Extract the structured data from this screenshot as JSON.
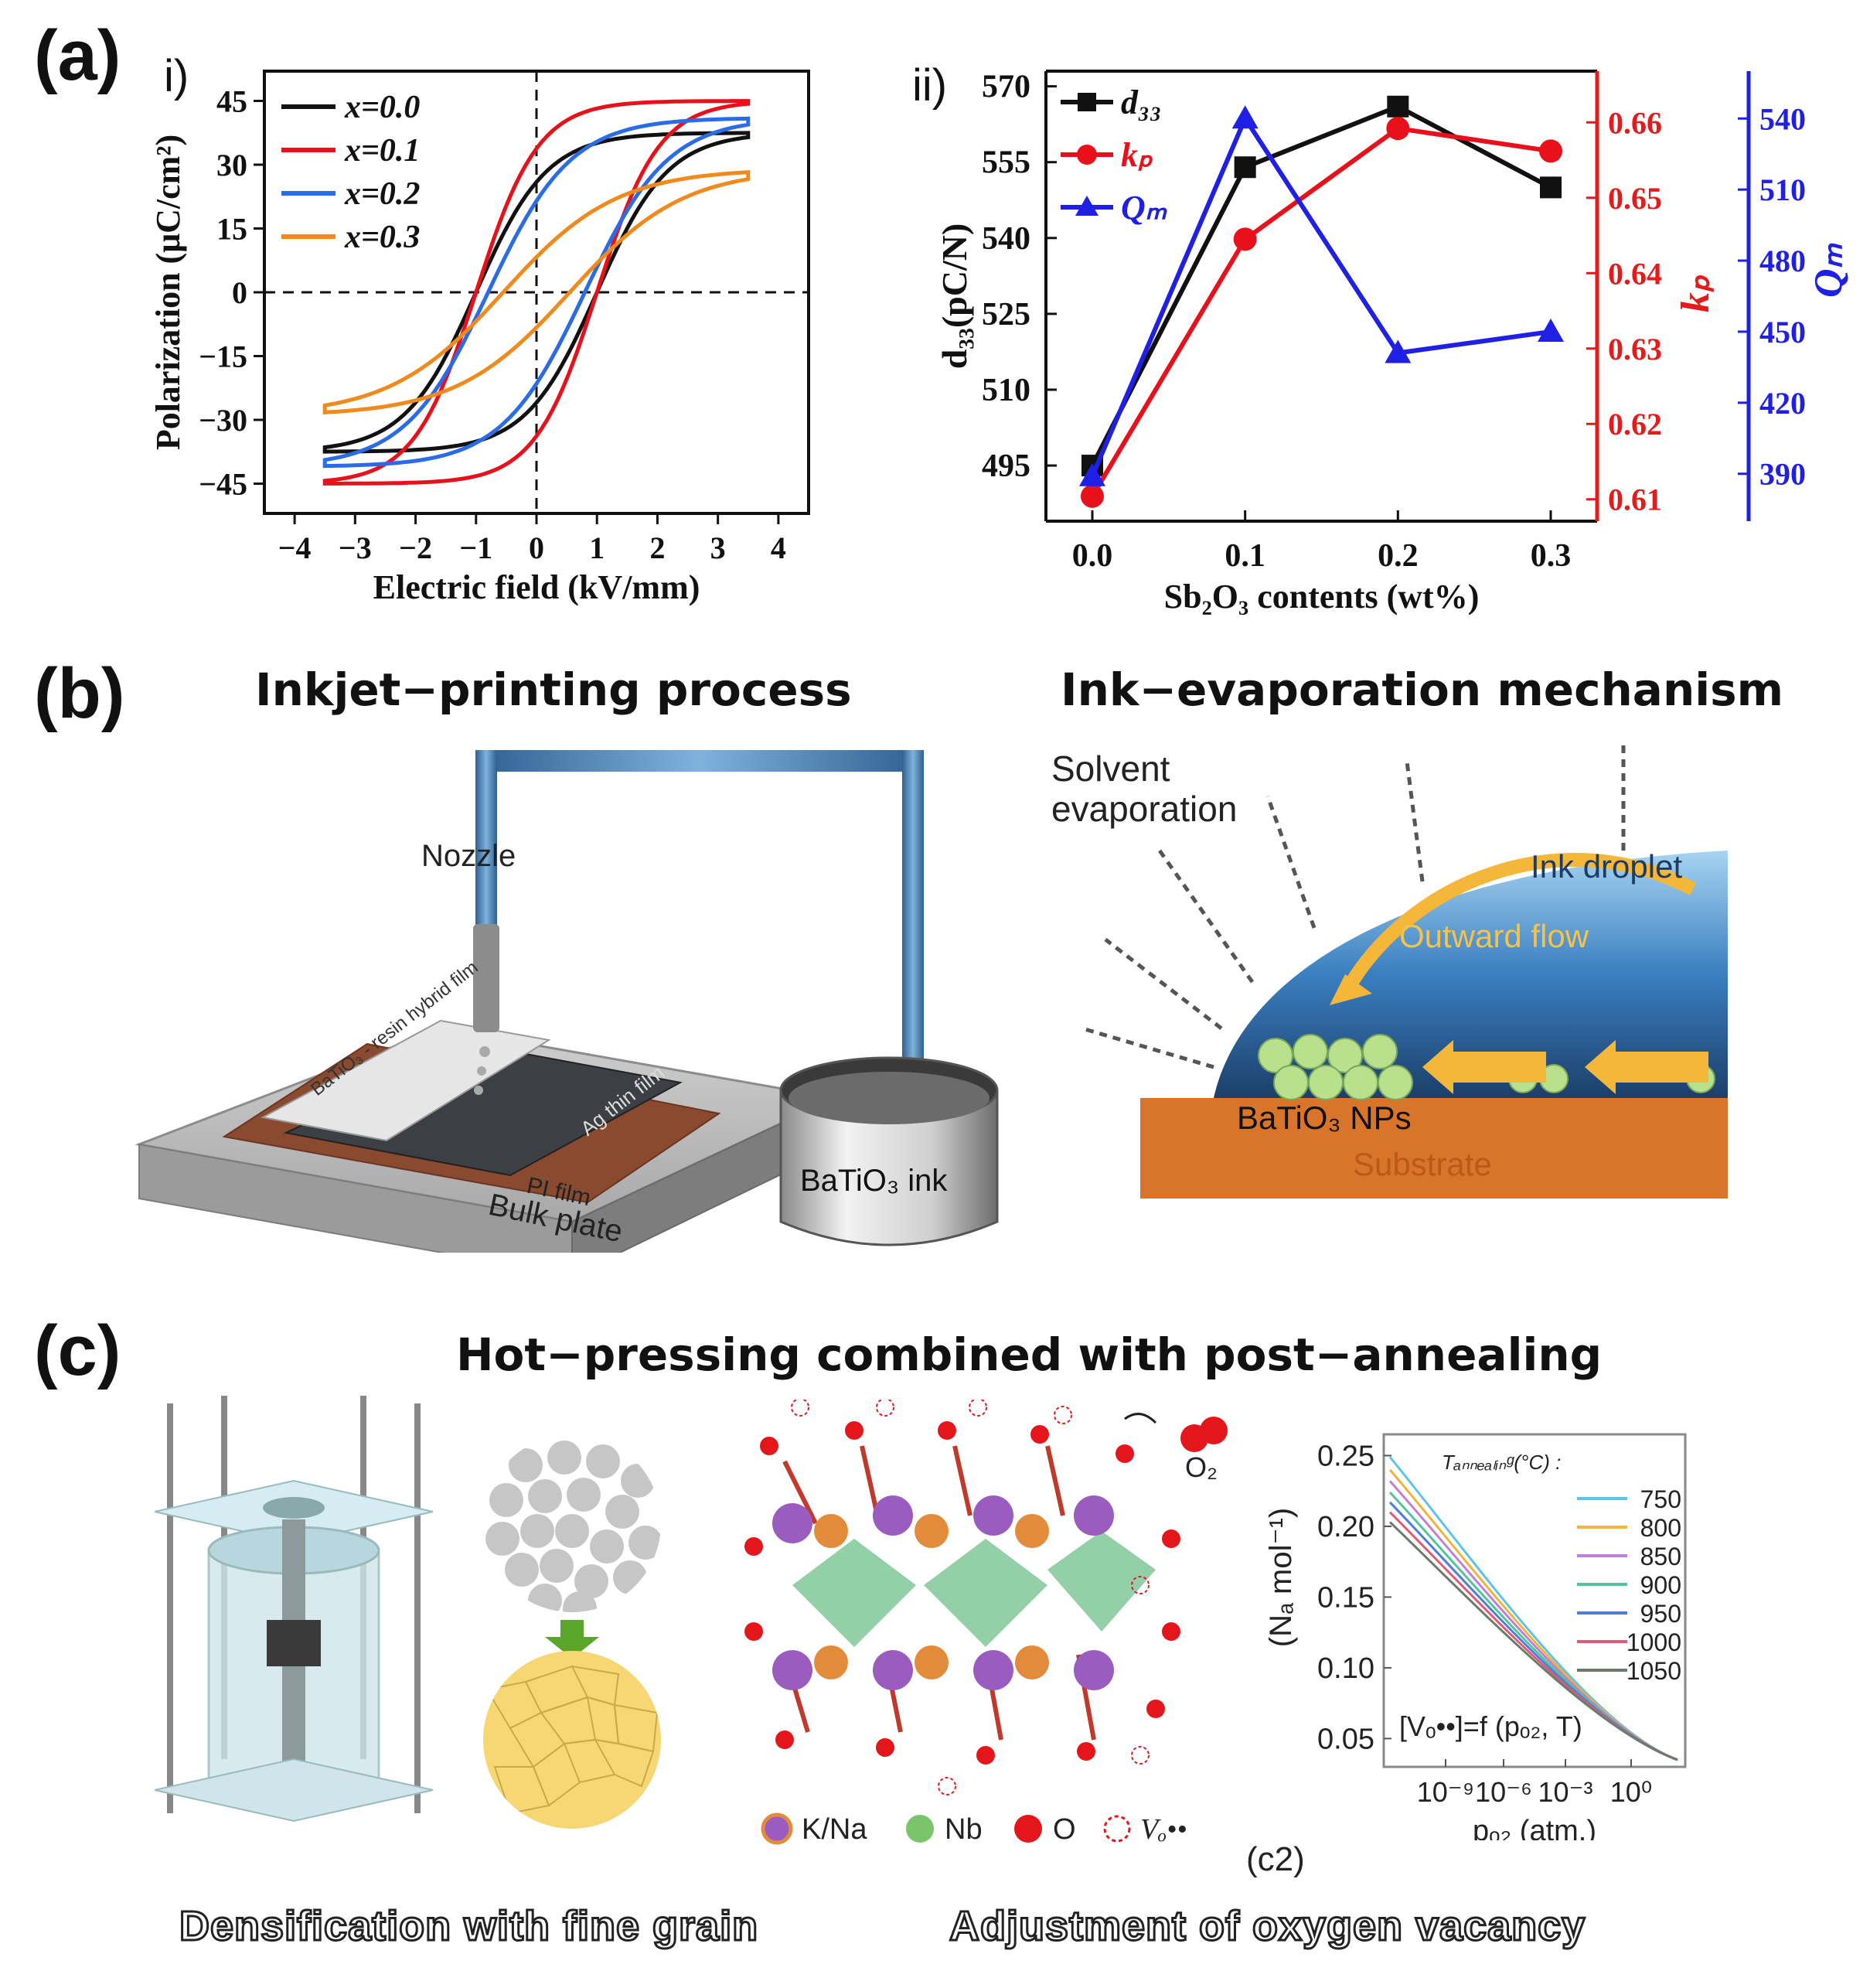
{
  "figure": {
    "panel_a": {
      "letter": "(a)",
      "sub_i": "i)",
      "sub_ii": "ii)"
    },
    "panel_b": {
      "letter": "(b)",
      "left_title": "Inkjet−printing process",
      "right_title": "Ink−evaporation mechanism",
      "labels": {
        "nozzle": "Nozzle",
        "hybrid_film": "BaTiO₃ - resin hybrid film",
        "ag_film": "Ag thin film",
        "pi_film": "PI film",
        "bulk_plate": "Bulk plate",
        "ink": "BaTiO₃ ink",
        "solvent": "Solvent",
        "evaporation": "evaporation",
        "ink_droplet": "Ink droplet",
        "outward_flow": "Outward flow",
        "nps": "BaTiO₃ NPs",
        "substrate": "Substrate"
      }
    },
    "panel_c": {
      "letter": "(c)",
      "title": "Hot−pressing combined with post−annealing",
      "legend": {
        "kna": "K/Na",
        "nb": "Nb",
        "o": "O",
        "v": "Vₒ••"
      },
      "o2": "O₂",
      "c2": "(c2)",
      "caption_left": "Densification with fine grain",
      "caption_right": "Adjustment of oxygen vacancy"
    }
  },
  "colors": {
    "black": "#111111",
    "red": "#e8111b",
    "blue": "#2a6be8",
    "orange": "#f08a1c",
    "axis_red": "#e51b1b",
    "axis_blue": "#1f1fe6",
    "substrate": "#d9752a",
    "droplet": "#4a8fcf"
  },
  "chart_data": [
    {
      "id": "pe_loops",
      "type": "line",
      "title": "",
      "xlabel": "Electric field (kV/mm)",
      "ylabel": "Polarization (μC/cm²)",
      "xlim": [
        -4.5,
        4.5
      ],
      "ylim": [
        -52,
        52
      ],
      "xticks": [
        -4,
        -3,
        -2,
        -1,
        0,
        1,
        2,
        3,
        4
      ],
      "yticks": [
        45,
        30,
        15,
        0,
        -15,
        -30,
        -45
      ],
      "legend": [
        "x=0.0",
        "x=0.1",
        "x=0.2",
        "x=0.3"
      ],
      "series": [
        {
          "name": "x=0.0",
          "Ps": 37.5,
          "Ec": 1.0,
          "Pr": 27,
          "Emax": 3.5,
          "w": 0.32
        },
        {
          "name": "x=0.1",
          "Ps": 45,
          "Ec": 1.0,
          "Pr": 36,
          "Emax": 3.5,
          "w": 0.26
        },
        {
          "name": "x=0.2",
          "Ps": 41,
          "Ec": 0.8,
          "Pr": 27,
          "Emax": 3.5,
          "w": 0.4
        },
        {
          "name": "x=0.3",
          "Ps": 29,
          "Ec": 0.55,
          "Pr": 18,
          "Emax": 3.5,
          "w": 0.6
        }
      ]
    },
    {
      "id": "sb2o3_props",
      "type": "line",
      "xlabel": "Sb₂O₃ contents (wt%)",
      "x": [
        0.0,
        0.1,
        0.2,
        0.3
      ],
      "xticks": [
        "0.0",
        "0.1",
        "0.2",
        "0.3"
      ],
      "axes": {
        "d33": {
          "label": "d₃₃(pC/N)",
          "lim": [
            484,
            573
          ],
          "ticks": [
            495,
            510,
            525,
            540,
            555,
            570
          ]
        },
        "kp": {
          "label": "kₚ",
          "lim": [
            0.6071,
            0.6668
          ],
          "ticks": [
            0.61,
            0.62,
            0.63,
            0.64,
            0.65,
            0.66
          ]
        },
        "Qm": {
          "label": "Qₘ",
          "lim": [
            370,
            560
          ],
          "ticks": [
            390,
            420,
            450,
            480,
            510,
            540
          ]
        }
      },
      "legend": [
        "d₃₃",
        "kₚ",
        "Qₘ"
      ],
      "series": [
        {
          "name": "d33",
          "axis": "d33",
          "values": [
            495,
            554,
            566,
            550
          ]
        },
        {
          "name": "kp",
          "axis": "kp",
          "values": [
            0.6104,
            0.6445,
            0.6592,
            0.6562
          ]
        },
        {
          "name": "Qm",
          "axis": "Qm",
          "values": [
            389,
            540,
            441,
            450
          ]
        }
      ]
    },
    {
      "id": "vacancy_conc",
      "type": "line",
      "xlabel": "pₒ₂ (atm.)",
      "ylabel": "(Nₐ mol⁻¹)",
      "legend_title": "Tₐₙₙₑₐₗᵢₙᵍ(°C) :",
      "xticks": [
        "10⁻⁹",
        "10⁻⁶",
        "10⁻³",
        "10⁰"
      ],
      "yticks": [
        0.05,
        0.1,
        0.15,
        0.2,
        0.25
      ],
      "ylim": [
        0.03,
        0.265
      ],
      "annotation": "[Vₒ••]=f (pₒ₂, T)",
      "series": [
        {
          "name": "750",
          "color": "#5fc3e8",
          "y0": 0.249
        },
        {
          "name": "800",
          "color": "#f0b43a",
          "y0": 0.24
        },
        {
          "name": "850",
          "color": "#c07fd6",
          "y0": 0.232
        },
        {
          "name": "900",
          "color": "#52c49a",
          "y0": 0.224
        },
        {
          "name": "950",
          "color": "#4d7fd4",
          "y0": 0.217
        },
        {
          "name": "1000",
          "color": "#e05a78",
          "y0": 0.21
        },
        {
          "name": "1050",
          "color": "#6b7a6b",
          "y0": 0.203
        }
      ]
    }
  ]
}
